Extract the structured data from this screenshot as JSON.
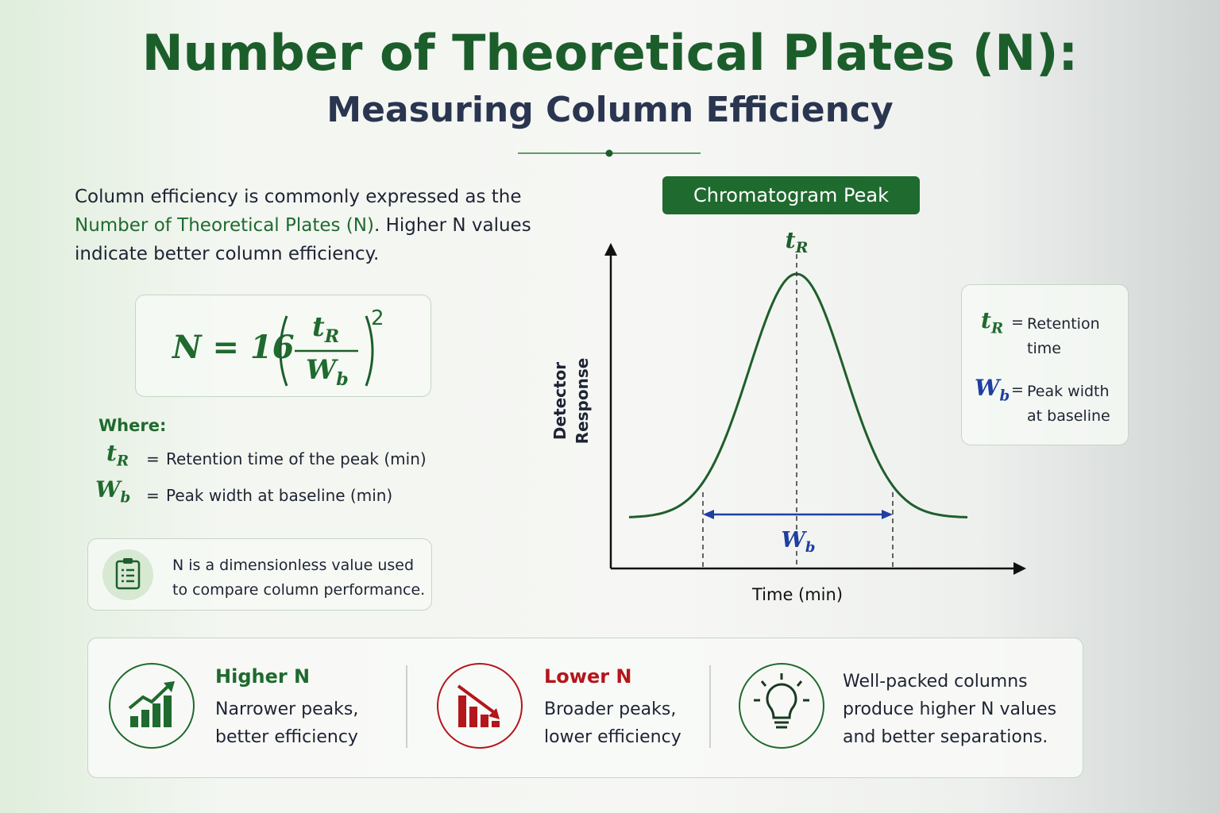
{
  "header": {
    "title": "Number of Theoretical Plates (N):",
    "subtitle": "Measuring Column Efficiency"
  },
  "intro": {
    "before": "Column efficiency is commonly expressed as the ",
    "highlight": "Number of Theoretical Plates (N)",
    "after": ". Higher N values indicate better column efficiency."
  },
  "formula": {
    "lhs": "N = 16",
    "numerator": {
      "base": "t",
      "sub": "R"
    },
    "denominator": {
      "base": "W",
      "sub": "b"
    },
    "exponent": "2"
  },
  "where": {
    "heading": "Where:",
    "items": [
      {
        "symbol": {
          "base": "t",
          "sub": "R"
        },
        "sep": "=",
        "text": "Retention time of the peak (min)"
      },
      {
        "symbol": {
          "base": "W",
          "sub": "b"
        },
        "sep": "=",
        "text": "Peak width at baseline (min)"
      }
    ]
  },
  "note": "N is a dimensionless value used to compare column performance.",
  "diagram": {
    "title": "Chromatogram Peak",
    "y_label": [
      "Detector",
      "Response"
    ],
    "x_label": "Time (min)",
    "peak_label": {
      "base": "t",
      "sub": "R"
    },
    "width_label": {
      "base": "W",
      "sub": "b"
    }
  },
  "legend": [
    {
      "symbol": {
        "base": "t",
        "sub": "R"
      },
      "sep": "=",
      "text": "Retention time"
    },
    {
      "symbol": {
        "base": "W",
        "sub": "b"
      },
      "sep": "=",
      "text": "Peak width at baseline"
    }
  ],
  "summary": [
    {
      "title": "Higher N",
      "text": "Narrower peaks, better efficiency"
    },
    {
      "title": "Lower N",
      "text": "Broader peaks, lower efficiency"
    },
    {
      "text": "Well-packed columns produce higher N values and better separations."
    }
  ]
}
